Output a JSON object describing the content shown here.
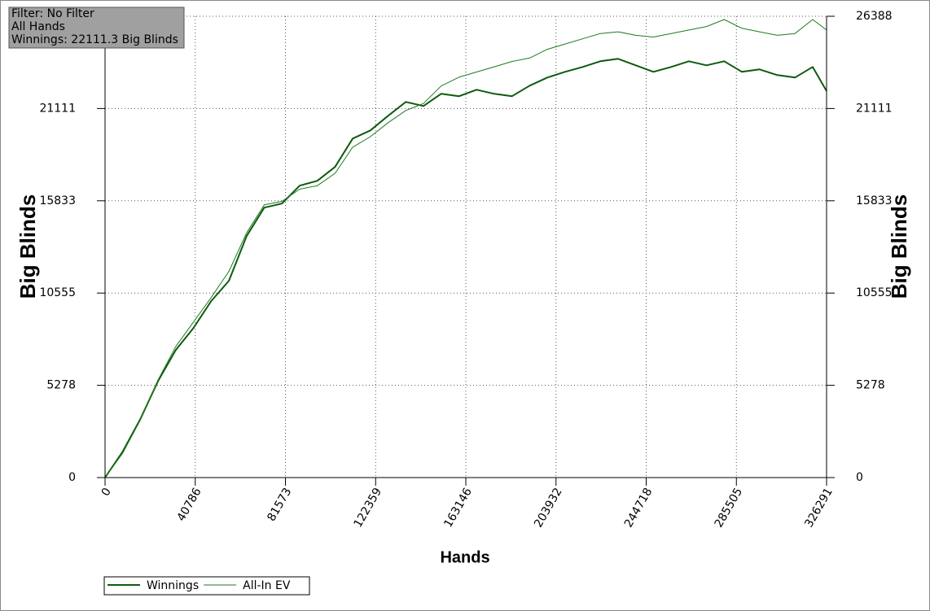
{
  "chart_data": {
    "type": "line",
    "xlabel": "Hands",
    "ylabel": "Big Blinds",
    "y2label": "Big Blinds",
    "annotations": [
      "Filter: No Filter",
      "All Hands",
      "Winnings: 22111.3 Big Blinds"
    ],
    "xlim": [
      0,
      326291
    ],
    "xticks": [
      0,
      40786,
      81573,
      122359,
      163146,
      203932,
      244718,
      285505,
      326291
    ],
    "ylim": [
      0,
      26388
    ],
    "yticks": [
      0,
      5278,
      10555,
      15833,
      21111,
      26388
    ],
    "y2lim": [
      0,
      26388
    ],
    "y2ticks": [
      0,
      5278,
      10555,
      15833,
      21111,
      26388
    ],
    "grid": true,
    "legend": "bottom-left",
    "x": [
      0,
      8000,
      16000,
      24000,
      32000,
      40000,
      48000,
      56000,
      64000,
      72000,
      80000,
      88000,
      96000,
      104000,
      112000,
      120000,
      128000,
      136000,
      144000,
      152000,
      160000,
      168000,
      176000,
      184000,
      192000,
      200000,
      208000,
      216000,
      224000,
      232000,
      240000,
      248000,
      256000,
      264000,
      272000,
      280000,
      288000,
      296000,
      304000,
      312000,
      320000,
      326291
    ],
    "series": [
      {
        "name": "Winnings",
        "color": "#0f5a0f",
        "width": 2,
        "values": [
          0,
          1488,
          3349,
          5535,
          7302,
          8558,
          10093,
          11256,
          13814,
          15442,
          15674,
          16698,
          16977,
          17767,
          19395,
          19860,
          20698,
          21488,
          21256,
          21953,
          21814,
          22186,
          21953,
          21814,
          22419,
          22884,
          23209,
          23488,
          23814,
          23953,
          23581,
          23209,
          23488,
          23814,
          23581,
          23814,
          23209,
          23349,
          23023,
          22884,
          23488,
          22111
        ]
      },
      {
        "name": "All-In EV",
        "color": "#1f7a1f",
        "width": 1,
        "values": [
          0,
          1400,
          3300,
          5600,
          7500,
          8900,
          10300,
          11800,
          14000,
          15600,
          15800,
          16500,
          16700,
          17400,
          18900,
          19500,
          20300,
          21000,
          21400,
          22400,
          22900,
          23200,
          23500,
          23800,
          24000,
          24500,
          24800,
          25100,
          25400,
          25500,
          25300,
          25200,
          25400,
          25600,
          25800,
          26200,
          25700,
          25500,
          25300,
          25400,
          26200,
          25600
        ]
      }
    ]
  }
}
